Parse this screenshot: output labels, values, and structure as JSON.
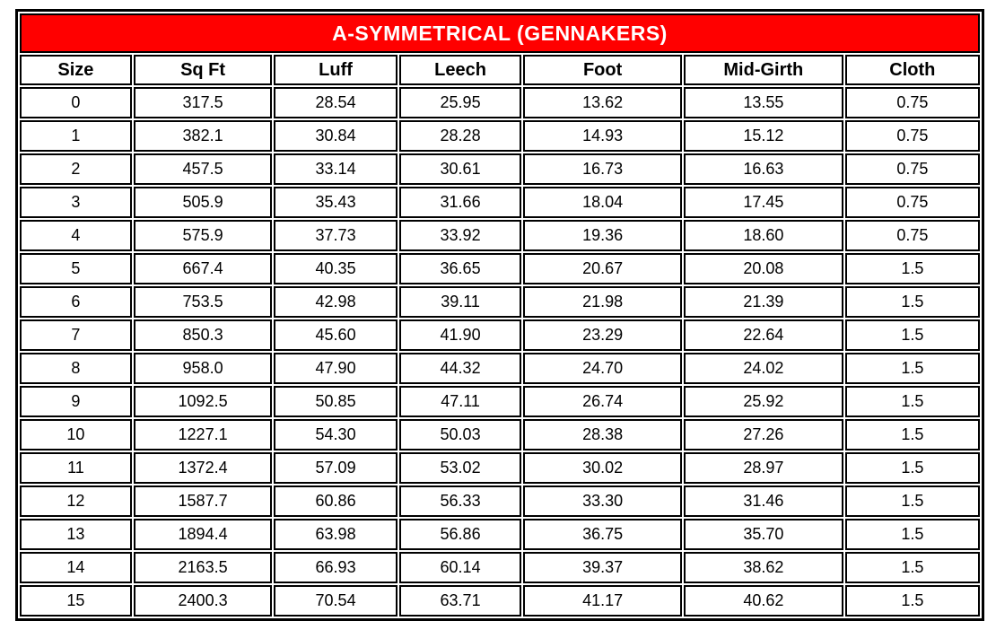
{
  "page": {
    "background": "#ffffff"
  },
  "table": {
    "title": "A-SYMMETRICAL (GENNAKERS)",
    "title_bg": "#ff0000",
    "title_color": "#ffffff",
    "border_color": "#000000",
    "columns": [
      "Size",
      "Sq Ft",
      "Luff",
      "Leech",
      "Foot",
      "Mid-Girth",
      "Cloth"
    ],
    "col_widths_pct": [
      11.8,
      14.6,
      13.0,
      12.9,
      16.7,
      16.8,
      14.2
    ],
    "rows": [
      [
        "0",
        "317.5",
        "28.54",
        "25.95",
        "13.62",
        "13.55",
        "0.75"
      ],
      [
        "1",
        "382.1",
        "30.84",
        "28.28",
        "14.93",
        "15.12",
        "0.75"
      ],
      [
        "2",
        "457.5",
        "33.14",
        "30.61",
        "16.73",
        "16.63",
        "0.75"
      ],
      [
        "3",
        "505.9",
        "35.43",
        "31.66",
        "18.04",
        "17.45",
        "0.75"
      ],
      [
        "4",
        "575.9",
        "37.73",
        "33.92",
        "19.36",
        "18.60",
        "0.75"
      ],
      [
        "5",
        "667.4",
        "40.35",
        "36.65",
        "20.67",
        "20.08",
        "1.5"
      ],
      [
        "6",
        "753.5",
        "42.98",
        "39.11",
        "21.98",
        "21.39",
        "1.5"
      ],
      [
        "7",
        "850.3",
        "45.60",
        "41.90",
        "23.29",
        "22.64",
        "1.5"
      ],
      [
        "8",
        "958.0",
        "47.90",
        "44.32",
        "24.70",
        "24.02",
        "1.5"
      ],
      [
        "9",
        "1092.5",
        "50.85",
        "47.11",
        "26.74",
        "25.92",
        "1.5"
      ],
      [
        "10",
        "1227.1",
        "54.30",
        "50.03",
        "28.38",
        "27.26",
        "1.5"
      ],
      [
        "11",
        "1372.4",
        "57.09",
        "53.02",
        "30.02",
        "28.97",
        "1.5"
      ],
      [
        "12",
        "1587.7",
        "60.86",
        "56.33",
        "33.30",
        "31.46",
        "1.5"
      ],
      [
        "13",
        "1894.4",
        "63.98",
        "56.86",
        "36.75",
        "35.70",
        "1.5"
      ],
      [
        "14",
        "2163.5",
        "66.93",
        "60.14",
        "39.37",
        "38.62",
        "1.5"
      ],
      [
        "15",
        "2400.3",
        "70.54",
        "63.71",
        "41.17",
        "40.62",
        "1.5"
      ]
    ]
  }
}
